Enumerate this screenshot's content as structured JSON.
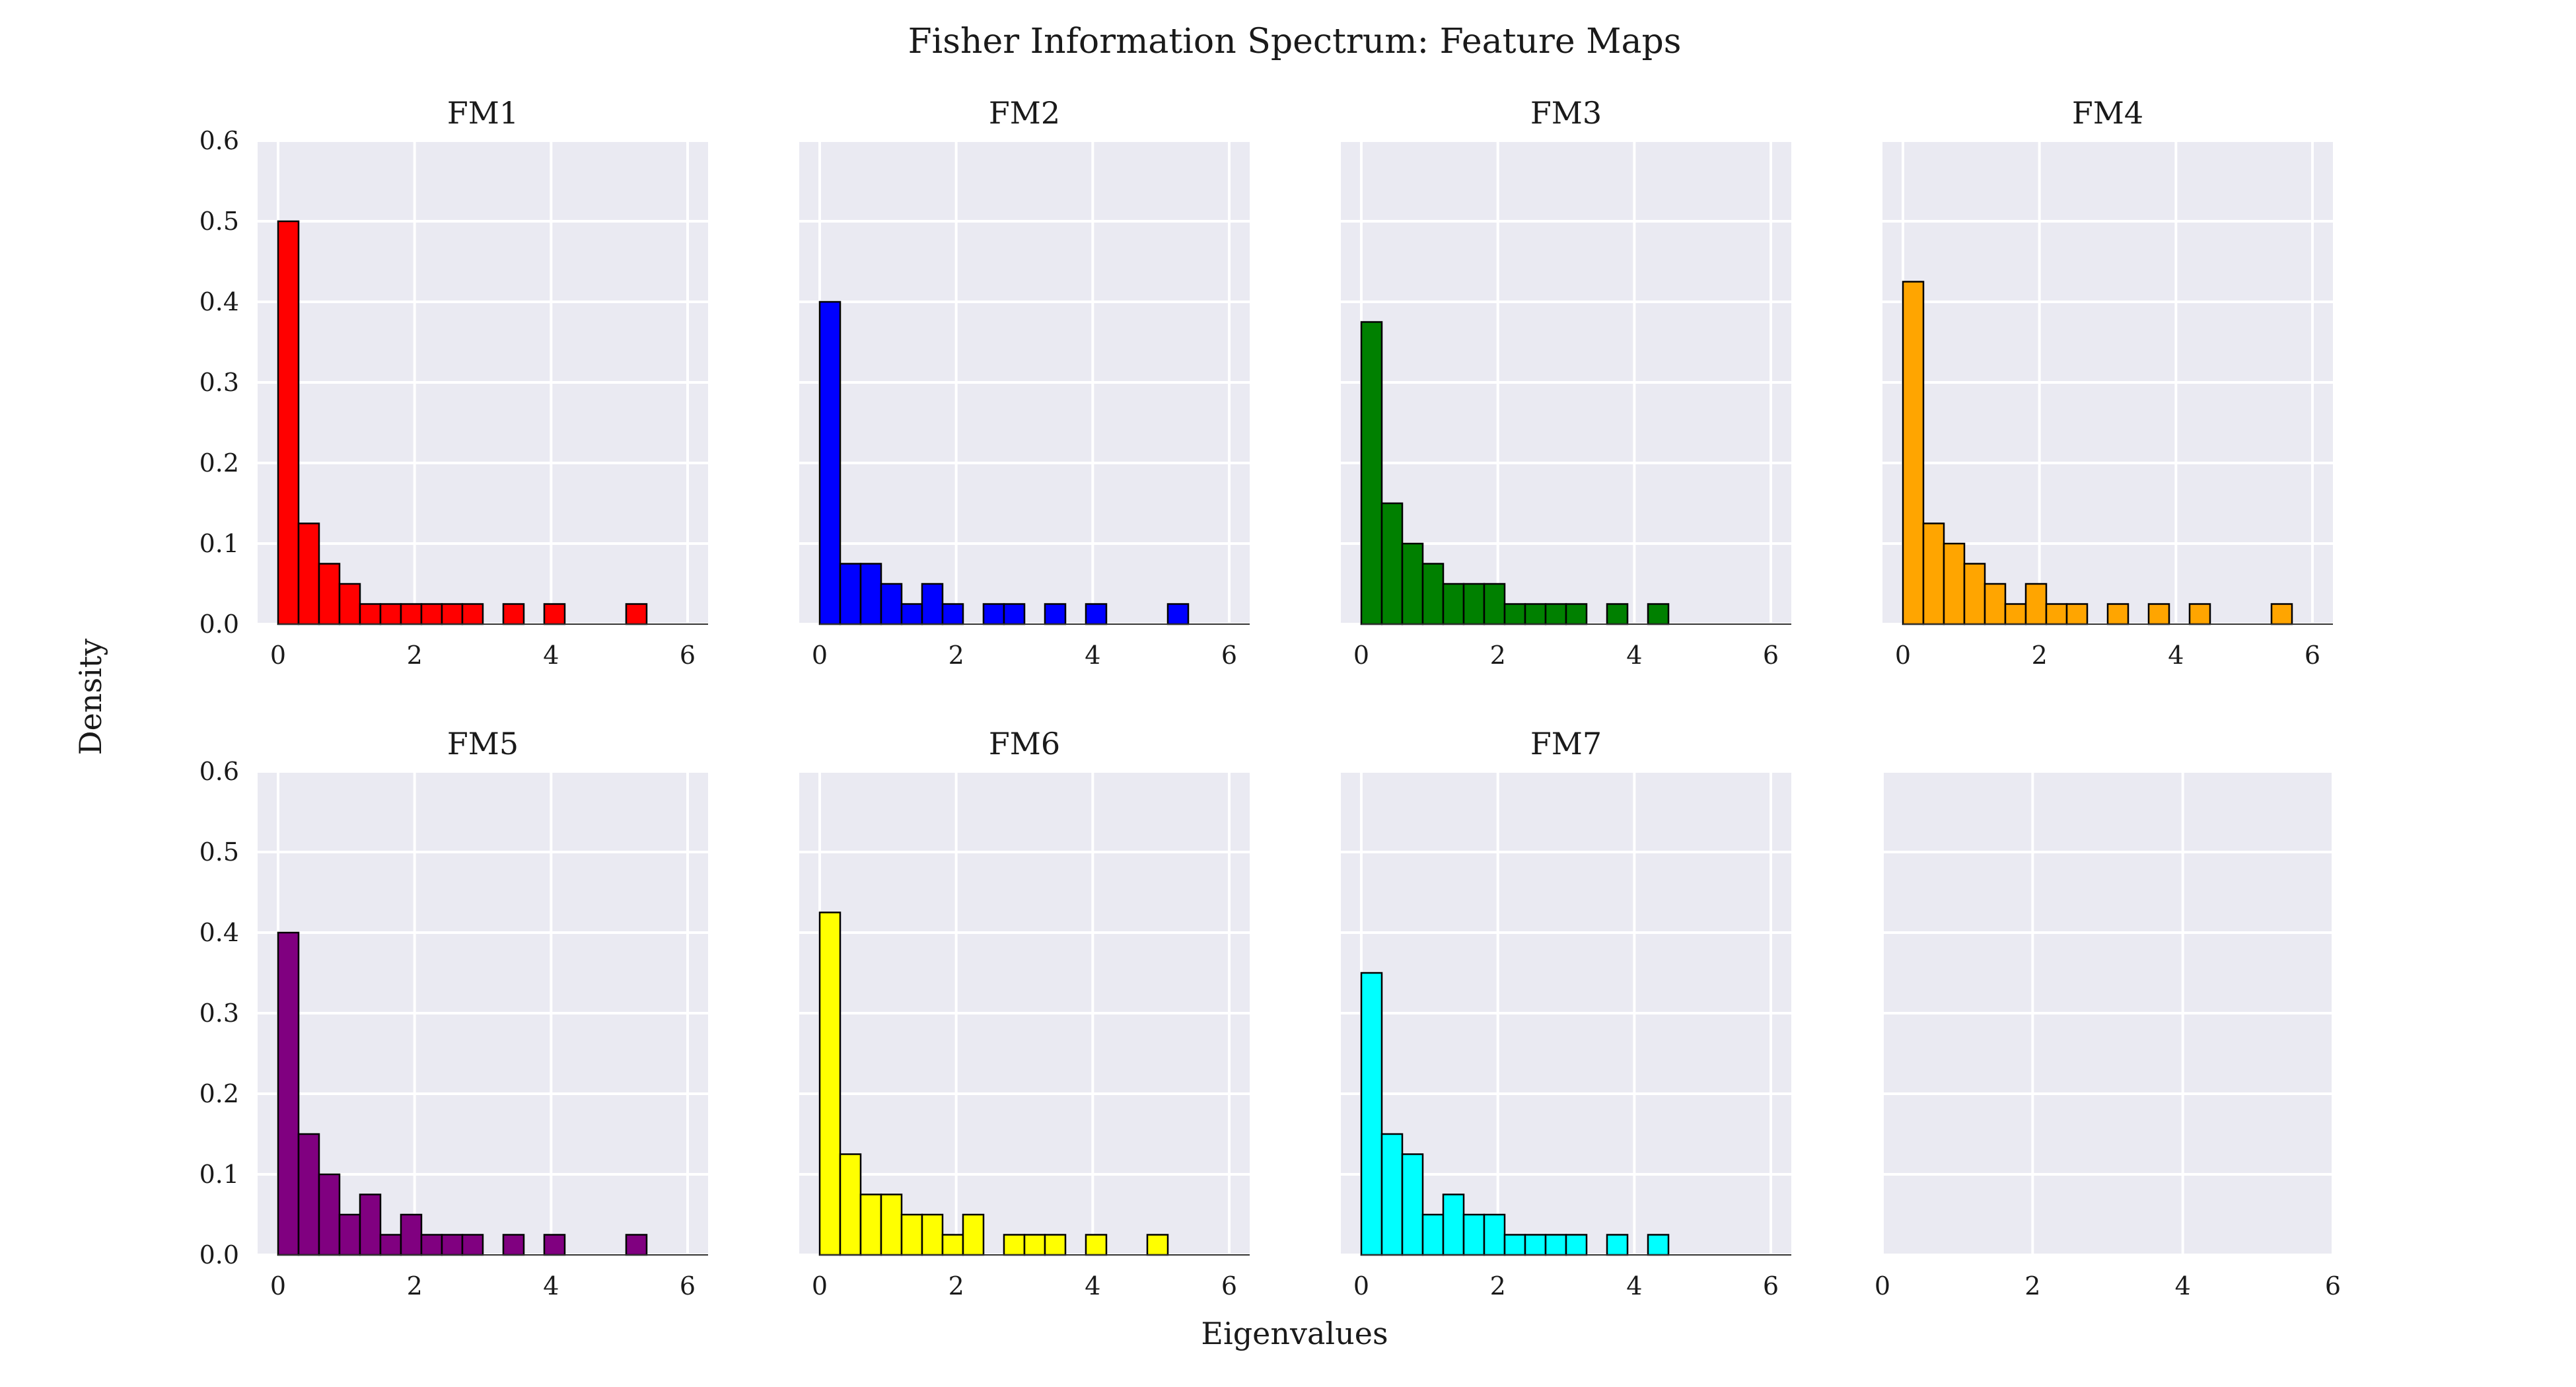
{
  "figure": {
    "title": "Fisher Information Spectrum: Feature Maps",
    "xlabel": "Eigenvalues",
    "ylabel": "Density"
  },
  "chart_data": [
    {
      "type": "bar",
      "title": "FM1",
      "color": "#ff0000",
      "bin_width": 0.3,
      "xlim": [
        -0.3,
        6.3
      ],
      "ylim": [
        0,
        0.6
      ],
      "xticks": [
        0,
        2,
        4,
        6
      ],
      "yticks": [
        0.0,
        0.1,
        0.2,
        0.3,
        0.4,
        0.5,
        0.6
      ],
      "x": [
        0.0,
        0.3,
        0.6,
        0.9,
        1.2,
        1.5,
        1.8,
        2.1,
        2.4,
        2.7,
        3.3,
        3.9,
        5.1
      ],
      "values": [
        0.5,
        0.125,
        0.075,
        0.05,
        0.025,
        0.025,
        0.025,
        0.025,
        0.025,
        0.025,
        0.025,
        0.025,
        0.025
      ]
    },
    {
      "type": "bar",
      "title": "FM2",
      "color": "#0000ff",
      "bin_width": 0.3,
      "xlim": [
        -0.3,
        6.3
      ],
      "ylim": [
        0,
        0.6
      ],
      "xticks": [
        0,
        2,
        4,
        6
      ],
      "yticks": [
        0.0,
        0.1,
        0.2,
        0.3,
        0.4,
        0.5,
        0.6
      ],
      "x": [
        0.0,
        0.3,
        0.6,
        0.9,
        1.2,
        1.5,
        1.8,
        2.4,
        2.7,
        3.3,
        3.9,
        5.1
      ],
      "values": [
        0.4,
        0.075,
        0.075,
        0.05,
        0.025,
        0.05,
        0.025,
        0.025,
        0.025,
        0.025,
        0.025,
        0.025
      ]
    },
    {
      "type": "bar",
      "title": "FM3",
      "color": "#008000",
      "bin_width": 0.3,
      "xlim": [
        -0.3,
        6.3
      ],
      "ylim": [
        0,
        0.6
      ],
      "xticks": [
        0,
        2,
        4,
        6
      ],
      "yticks": [
        0.0,
        0.1,
        0.2,
        0.3,
        0.4,
        0.5,
        0.6
      ],
      "x": [
        0.0,
        0.3,
        0.6,
        0.9,
        1.2,
        1.5,
        1.8,
        2.1,
        2.4,
        2.7,
        3.0,
        3.6,
        4.2
      ],
      "values": [
        0.375,
        0.15,
        0.1,
        0.075,
        0.05,
        0.05,
        0.05,
        0.025,
        0.025,
        0.025,
        0.025,
        0.025,
        0.025
      ]
    },
    {
      "type": "bar",
      "title": "FM4",
      "color": "#ffa500",
      "bin_width": 0.3,
      "xlim": [
        -0.3,
        6.3
      ],
      "ylim": [
        0,
        0.6
      ],
      "xticks": [
        0,
        2,
        4,
        6
      ],
      "yticks": [
        0.0,
        0.1,
        0.2,
        0.3,
        0.4,
        0.5,
        0.6
      ],
      "x": [
        0.0,
        0.3,
        0.6,
        0.9,
        1.2,
        1.5,
        1.8,
        2.1,
        2.4,
        3.0,
        3.6,
        4.2,
        5.4
      ],
      "values": [
        0.425,
        0.125,
        0.1,
        0.075,
        0.05,
        0.025,
        0.05,
        0.025,
        0.025,
        0.025,
        0.025,
        0.025,
        0.025
      ]
    },
    {
      "type": "bar",
      "title": "FM5",
      "color": "#800080",
      "bin_width": 0.3,
      "xlim": [
        -0.3,
        6.3
      ],
      "ylim": [
        0,
        0.6
      ],
      "xticks": [
        0,
        2,
        4,
        6
      ],
      "yticks": [
        0.0,
        0.1,
        0.2,
        0.3,
        0.4,
        0.5,
        0.6
      ],
      "x": [
        0.0,
        0.3,
        0.6,
        0.9,
        1.2,
        1.5,
        1.8,
        2.1,
        2.4,
        2.7,
        3.3,
        3.9,
        5.1
      ],
      "values": [
        0.4,
        0.15,
        0.1,
        0.05,
        0.075,
        0.025,
        0.05,
        0.025,
        0.025,
        0.025,
        0.025,
        0.025,
        0.025
      ]
    },
    {
      "type": "bar",
      "title": "FM6",
      "color": "#ffff00",
      "bin_width": 0.3,
      "xlim": [
        -0.3,
        6.3
      ],
      "ylim": [
        0,
        0.6
      ],
      "xticks": [
        0,
        2,
        4,
        6
      ],
      "yticks": [
        0.0,
        0.1,
        0.2,
        0.3,
        0.4,
        0.5,
        0.6
      ],
      "x": [
        0.0,
        0.3,
        0.6,
        0.9,
        1.2,
        1.5,
        1.8,
        2.1,
        2.7,
        3.0,
        3.3,
        3.9,
        4.8
      ],
      "values": [
        0.425,
        0.125,
        0.075,
        0.075,
        0.05,
        0.05,
        0.025,
        0.05,
        0.025,
        0.025,
        0.025,
        0.025,
        0.025
      ]
    },
    {
      "type": "bar",
      "title": "FM7",
      "color": "#00ffff",
      "bin_width": 0.3,
      "xlim": [
        -0.3,
        6.3
      ],
      "ylim": [
        0,
        0.6
      ],
      "xticks": [
        0,
        2,
        4,
        6
      ],
      "yticks": [
        0.0,
        0.1,
        0.2,
        0.3,
        0.4,
        0.5,
        0.6
      ],
      "x": [
        0.0,
        0.3,
        0.6,
        0.9,
        1.2,
        1.5,
        1.8,
        2.1,
        2.4,
        2.7,
        3.0,
        3.6,
        4.2
      ],
      "values": [
        0.35,
        0.15,
        0.125,
        0.05,
        0.075,
        0.05,
        0.05,
        0.025,
        0.025,
        0.025,
        0.025,
        0.025,
        0.025
      ]
    },
    {
      "type": "bar",
      "title": "",
      "color": "",
      "bin_width": 0.3,
      "xlim": [
        0,
        6
      ],
      "ylim": [
        0,
        0.6
      ],
      "xticks": [
        0,
        2,
        4,
        6
      ],
      "yticks": [],
      "x": [],
      "values": []
    }
  ]
}
